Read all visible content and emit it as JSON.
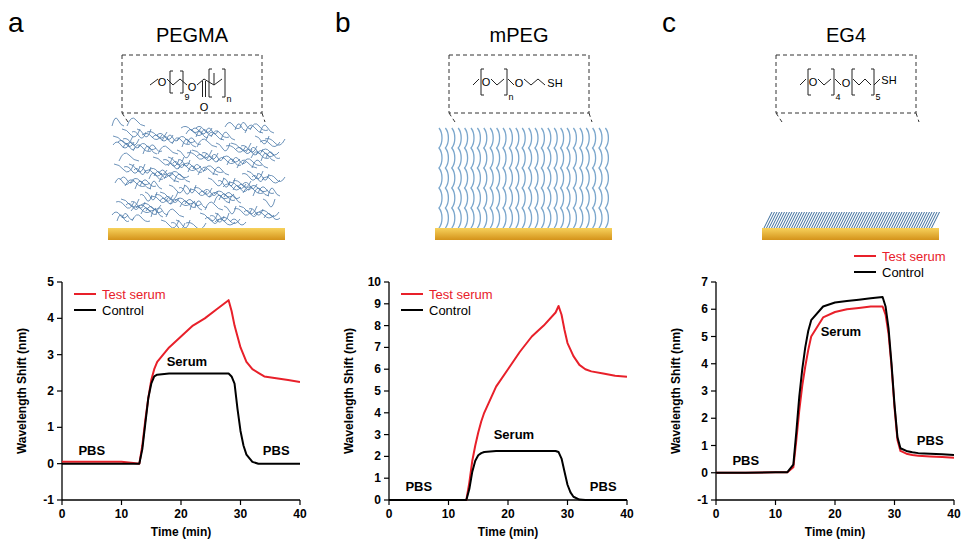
{
  "chart_data": [
    {
      "panel_label": "a",
      "title": "PEGMA",
      "structure_labels": [
        "O",
        "9",
        "O",
        "O",
        "n"
      ],
      "type": "line",
      "x_label": "Time (min)",
      "y_label": "Wavelength Shift (nm)",
      "x": [
        0,
        5,
        10,
        12,
        13,
        13.5,
        14,
        14.5,
        15,
        15.5,
        16,
        18,
        20,
        22,
        24,
        26,
        28,
        28.5,
        29,
        29.5,
        30,
        30.5,
        31,
        32,
        33,
        34,
        36,
        38,
        40
      ],
      "xlim": [
        0,
        40
      ],
      "xticks": [
        0,
        10,
        20,
        30,
        40
      ],
      "ylim": [
        -1,
        5
      ],
      "yticks": [
        -1,
        0,
        1,
        2,
        3,
        4,
        5
      ],
      "legend": "top left",
      "series": [
        {
          "name": "Test serum",
          "color": "#e8202a",
          "values": [
            0.05,
            0.05,
            0.05,
            0.02,
            0,
            0.5,
            1.2,
            1.8,
            2.3,
            2.6,
            2.8,
            3.2,
            3.5,
            3.8,
            4.0,
            4.25,
            4.5,
            4.2,
            3.8,
            3.5,
            3.2,
            3.0,
            2.8,
            2.6,
            2.5,
            2.4,
            2.35,
            2.3,
            2.25
          ]
        },
        {
          "name": "Control",
          "color": "#000000",
          "values": [
            0,
            0,
            0,
            0,
            0,
            0.4,
            1.1,
            1.8,
            2.2,
            2.4,
            2.45,
            2.48,
            2.48,
            2.48,
            2.48,
            2.48,
            2.48,
            2.4,
            2.2,
            1.5,
            0.9,
            0.5,
            0.25,
            0.05,
            0,
            0,
            0,
            0,
            0
          ]
        }
      ],
      "annotations": [
        {
          "text": "PBS",
          "x": 5,
          "y": 0.35
        },
        {
          "text": "Serum",
          "x": 21,
          "y": 2.8
        },
        {
          "text": "PBS",
          "x": 36,
          "y": 0.35
        }
      ]
    },
    {
      "panel_label": "b",
      "title": "mPEG",
      "structure_labels": [
        "O",
        "n",
        "O",
        "SH"
      ],
      "type": "line",
      "x_label": "Time (min)",
      "y_label": "Wavelength Shift (nm)",
      "x": [
        0,
        5,
        10,
        12,
        13,
        13.5,
        14,
        14.5,
        15,
        15.5,
        16,
        18,
        20,
        22,
        24,
        26,
        28,
        28.5,
        29,
        29.5,
        30,
        30.5,
        31,
        32,
        33,
        34,
        36,
        38,
        40
      ],
      "xlim": [
        0,
        40
      ],
      "xticks": [
        0,
        10,
        20,
        30,
        40
      ],
      "ylim": [
        0,
        10
      ],
      "yticks": [
        0,
        1,
        2,
        3,
        4,
        5,
        6,
        7,
        8,
        9,
        10
      ],
      "legend": "top left",
      "series": [
        {
          "name": "Test serum",
          "color": "#e8202a",
          "values": [
            0,
            0,
            0,
            0,
            0,
            0.8,
            1.8,
            2.5,
            3.1,
            3.6,
            4.0,
            5.2,
            6.0,
            6.8,
            7.5,
            8.0,
            8.6,
            8.9,
            8.5,
            7.8,
            7.2,
            6.9,
            6.6,
            6.2,
            6.0,
            5.9,
            5.8,
            5.7,
            5.65
          ]
        },
        {
          "name": "Control",
          "color": "#000000",
          "values": [
            0,
            0,
            0,
            0,
            0,
            0.5,
            1.3,
            1.8,
            2.05,
            2.15,
            2.2,
            2.25,
            2.25,
            2.25,
            2.25,
            2.25,
            2.25,
            2.2,
            1.9,
            1.3,
            0.7,
            0.35,
            0.15,
            0.02,
            0,
            0,
            0,
            0,
            0
          ]
        }
      ],
      "annotations": [
        {
          "text": "PBS",
          "x": 5,
          "y": 0.6
        },
        {
          "text": "Serum",
          "x": 21,
          "y": 3.0
        },
        {
          "text": "PBS",
          "x": 36,
          "y": 0.6
        }
      ]
    },
    {
      "panel_label": "c",
      "title": "EG4",
      "structure_labels": [
        "O",
        "4",
        "O",
        "5",
        "SH"
      ],
      "type": "line",
      "x_label": "Time (min)",
      "y_label": "Wavelength Shift (nm)",
      "x": [
        0,
        5,
        10,
        12,
        13,
        13.5,
        14,
        14.5,
        15,
        15.5,
        16,
        18,
        20,
        22,
        24,
        26,
        28,
        28.5,
        29,
        29.5,
        30,
        30.5,
        31,
        32,
        33,
        34,
        36,
        38,
        40
      ],
      "xlim": [
        0,
        40
      ],
      "xticks": [
        0,
        10,
        20,
        30,
        40
      ],
      "ylim": [
        -1,
        7
      ],
      "yticks": [
        -1,
        0,
        1,
        2,
        3,
        4,
        5,
        6,
        7
      ],
      "legend": "top right",
      "series": [
        {
          "name": "Test serum",
          "color": "#e8202a",
          "values": [
            0,
            0,
            0.02,
            0.02,
            0.2,
            1.2,
            2.3,
            3.2,
            3.9,
            4.5,
            5.0,
            5.7,
            5.9,
            6.0,
            6.05,
            6.1,
            6.1,
            5.8,
            5.1,
            3.9,
            2.4,
            1.2,
            0.8,
            0.7,
            0.65,
            0.62,
            0.6,
            0.58,
            0.55
          ]
        },
        {
          "name": "Control",
          "color": "#000000",
          "values": [
            0,
            0,
            0.02,
            0.02,
            0.3,
            1.5,
            2.8,
            3.8,
            4.6,
            5.2,
            5.6,
            6.1,
            6.25,
            6.3,
            6.35,
            6.4,
            6.45,
            6.1,
            5.3,
            4.0,
            2.5,
            1.3,
            0.9,
            0.8,
            0.75,
            0.72,
            0.7,
            0.68,
            0.65
          ]
        }
      ],
      "annotations": [
        {
          "text": "PBS",
          "x": 5,
          "y": 0.45
        },
        {
          "text": "Serum",
          "x": 21,
          "y": 5.2
        },
        {
          "text": "PBS",
          "x": 36,
          "y": 1.2
        }
      ]
    }
  ]
}
